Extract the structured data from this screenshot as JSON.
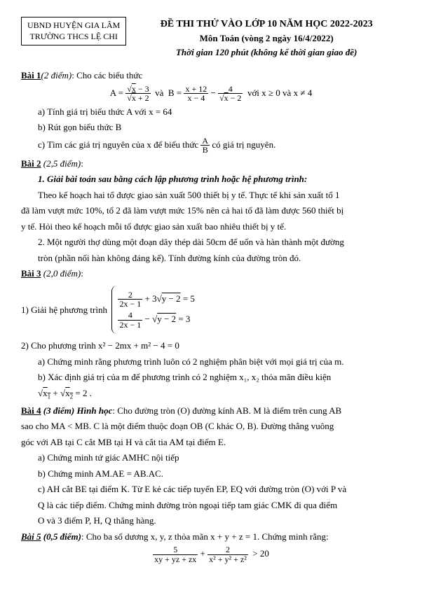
{
  "header": {
    "org_line1": "UBND HUYỆN GIA LÂM",
    "org_line2": "TRƯỜNG THCS LỆ CHI",
    "title_main": "ĐỀ THI THỬ VÀO LỚP 10 NĂM HỌC 2022-2023",
    "title_sub": "Môn Toán (vòng 2 ngày 16/4/2022)",
    "title_time": "Thời gian 120 phút (không kể thời gian giao đề)"
  },
  "b1": {
    "heading": "Bài 1",
    "points": "(2 điểm)",
    "intro": ": Cho các biểu thức",
    "cond": "với  x ≥ 0  và  x ≠ 4",
    "a": "a) Tính giá trị biểu thức  A với x = 64",
    "b": "b) Rút gọn biểu thức B",
    "c_pre": "c) Tìm các giá trị nguyên của x để biểu thức ",
    "c_post": " có giá trị nguyên."
  },
  "b2": {
    "heading": "Bài 2",
    "points": " (2,5 điểm)",
    "p1_title": "1. Giải bài toán sau bằng cách lập phương trình hoặc hệ phương trình:",
    "p1_l1": "Theo kế hoạch hai tổ được giao sản xuất 500 thiết bị y tế. Thực tế khi sản xuất tổ 1",
    "p1_l2": "đã làm vượt mức 10%, tổ 2 đã làm vượt mức 15% nên cả hai tổ đã làm được 560 thiết bị",
    "p1_l3": "y tế. Hỏi theo kế hoạch mỗi tổ được giao sản xuất bao nhiêu thiết bị y tế.",
    "p2_l1": "2. Một người thợ dùng một đoạn dây thép dài 50cm để uốn và hàn thành một đường",
    "p2_l2": "tròn (phần nối hàn không đáng kể). Tính đường kính của đường tròn đó."
  },
  "b3": {
    "heading": "Bài 3",
    "points": " (2,0 điểm)",
    "p1": "1) Giải hệ phương trình",
    "p2_intro": "2)  Cho phương trình   x² − 2mx + m² − 4 = 0",
    "p2_a": "a) Chứng minh rằng phương trình luôn có 2 nghiệm phân biệt với mọi giá trị của m.",
    "p2_b": "b) Xác định giá trị của m để phương trình có 2 nghiệm x₁, x₂ thỏa mãn điều kiện"
  },
  "b4": {
    "heading": "Bài 4",
    "points": " (3 điểm) Hình học",
    "intro1": ": Cho đường tròn (O) đường kính AB. M là điểm trên cung AB",
    "intro2": "sao cho MA < MB. C là một điểm thuộc đoạn OB (C khác O, B). Đường thẳng vuông",
    "intro3": "góc với AB tại C cắt MB tại H và cắt tia AM tại điểm E.",
    "a": "a) Chứng minh tứ giác AMHC nội tiếp",
    "b": "b) Chứng minh AM.AE = AB.AC.",
    "c1": "c) AH cắt BE tại điểm K. Từ E kẻ các tiếp tuyến EP, EQ với đường tròn (O) với P và",
    "c2": "Q là các tiếp điểm. Chứng minh đường tròn ngoại tiếp tam giác CMK đi qua điểm",
    "c3": "O và 3 điểm P, H, Q thẳng hàng."
  },
  "b5": {
    "heading": "Bài 5",
    "points": " (0,5 điểm)",
    "intro": ": Cho ba số dương x, y, z thỏa mãn x + y + z = 1. Chứng minh rằng:"
  }
}
